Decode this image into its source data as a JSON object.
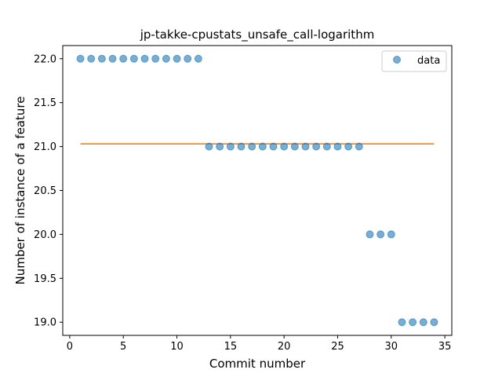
{
  "chart_data": {
    "type": "scatter",
    "title": "jp-takke-cpustats_unsafe_call-logarithm",
    "xlabel": "Commit number",
    "ylabel": "Number of instance of a feature",
    "xlim": [
      -0.65,
      35.65
    ],
    "ylim": [
      18.85,
      22.15
    ],
    "xticks": [
      0,
      5,
      10,
      15,
      20,
      25,
      30,
      35
    ],
    "yticks": [
      19.0,
      19.5,
      20.0,
      20.5,
      21.0,
      21.5,
      22.0
    ],
    "ytick_labels": [
      "19.0",
      "19.5",
      "20.0",
      "20.5",
      "21.0",
      "21.5",
      "22.0"
    ],
    "grid": false,
    "legend_position": "top-right",
    "series": [
      {
        "name": "data",
        "kind": "scatter",
        "color": "#1f77b4",
        "x": [
          1,
          2,
          3,
          4,
          5,
          6,
          7,
          8,
          9,
          10,
          11,
          12,
          13,
          14,
          15,
          16,
          17,
          18,
          19,
          20,
          21,
          22,
          23,
          24,
          25,
          26,
          27,
          28,
          29,
          30,
          31,
          32,
          33,
          34
        ],
        "y": [
          22,
          22,
          22,
          22,
          22,
          22,
          22,
          22,
          22,
          22,
          22,
          22,
          21,
          21,
          21,
          21,
          21,
          21,
          21,
          21,
          21,
          21,
          21,
          21,
          21,
          21,
          21,
          20,
          20,
          20,
          19,
          19,
          19,
          19
        ]
      },
      {
        "kind": "line",
        "color": "#ff7f0e",
        "x": [
          1,
          34
        ],
        "y": [
          21.03,
          21.03
        ]
      }
    ]
  }
}
